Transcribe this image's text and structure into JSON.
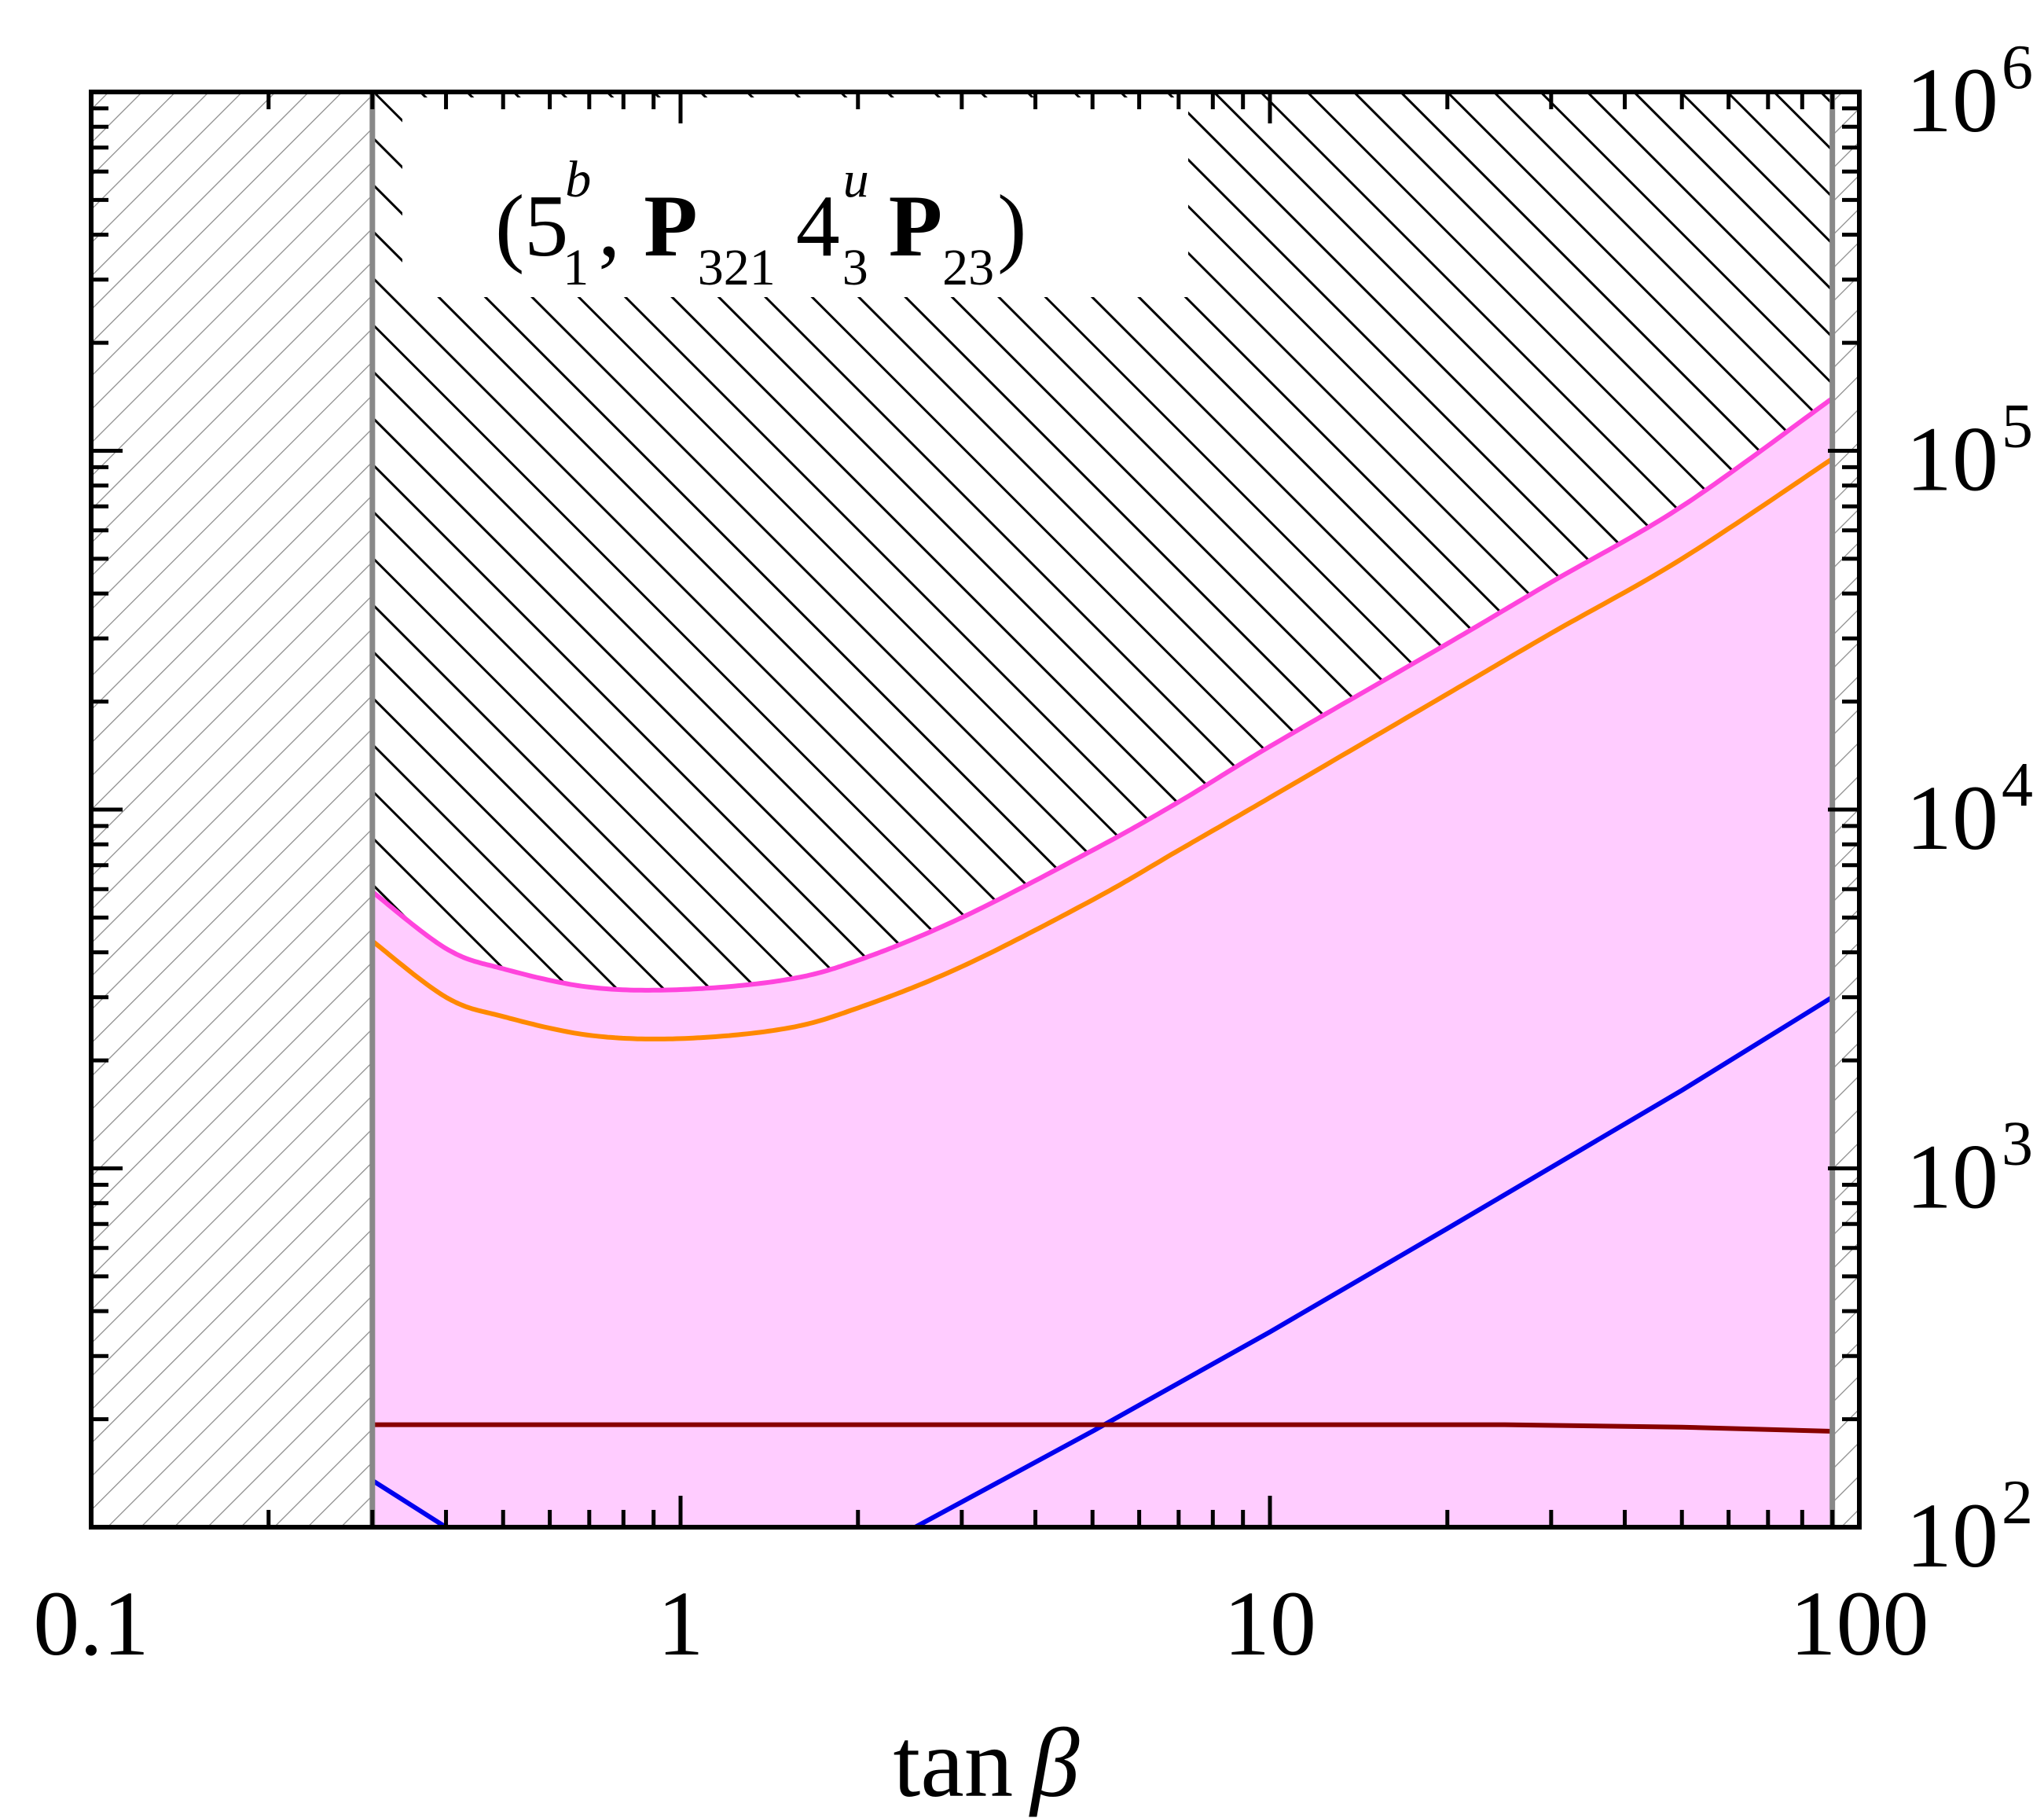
{
  "chart_data": {
    "type": "line",
    "title": {
      "open": "(5",
      "sup1": "b",
      "sub1": "1",
      "sep": ",",
      "p1": "P",
      "sub2": "321",
      "four": "4",
      "sup2": "u",
      "sub3": "3",
      "p2": "P",
      "sub4": "23",
      "close": ")"
    },
    "xlabel": "tan",
    "xlabel_symbol": "β",
    "x_scale": "log",
    "y_scale": "log",
    "xlim": [
      0.1,
      100
    ],
    "ylim": [
      100,
      1000000
    ],
    "x_ticks": [
      {
        "value": 0.1,
        "label": "0.1"
      },
      {
        "value": 1,
        "label": "1"
      },
      {
        "value": 10,
        "label": "10"
      },
      {
        "value": 100,
        "label": "100"
      }
    ],
    "y_ticks": [
      {
        "value": 100,
        "base": "10",
        "exp": "2"
      },
      {
        "value": 1000,
        "base": "10",
        "exp": "3"
      },
      {
        "value": 10000,
        "base": "10",
        "exp": "4"
      },
      {
        "value": 100000,
        "base": "10",
        "exp": "5"
      },
      {
        "value": 1000000,
        "base": "10",
        "exp": "6"
      }
    ],
    "y_axis_side": "right",
    "excluded_regions": [
      {
        "x_range": [
          0.1,
          0.3
        ],
        "style": "light grey hatch"
      },
      {
        "x_range": [
          90,
          100
        ],
        "style": "light grey hatch"
      }
    ],
    "upper_excluded_hatch": {
      "style": "black hatch",
      "above_series": "upper bound"
    },
    "allowed_band": {
      "color": "#ffccff",
      "between": "upper bound and y-axis minimum"
    },
    "colors": {
      "band": "#ffccff",
      "upper": "#ff44dd",
      "orange": "#ff8800",
      "blue": "#0000ee",
      "darkred": "#880000",
      "grey_line": "#888888"
    },
    "series": [
      {
        "name": "upper bound",
        "color": "#ff44dd",
        "x": [
          0.3,
          0.4,
          0.5,
          0.7,
          1.0,
          1.5,
          2.0,
          3.0,
          5.0,
          7.0,
          10,
          20,
          30,
          50,
          90
        ],
        "y": [
          5900,
          4100,
          3600,
          3200,
          3150,
          3350,
          3800,
          5000,
          7700,
          10500,
          15000,
          29000,
          43000,
          70000,
          140000
        ]
      },
      {
        "name": "orange curve",
        "color": "#ff8800",
        "x": [
          0.3,
          0.4,
          0.5,
          0.7,
          1.0,
          1.5,
          2.0,
          3.0,
          5.0,
          7.0,
          10,
          20,
          30,
          50,
          90
        ],
        "y": [
          4300,
          3000,
          2650,
          2350,
          2300,
          2450,
          2800,
          3650,
          5600,
          7700,
          10800,
          21000,
          31000,
          50000,
          95000
        ]
      },
      {
        "name": "blue line",
        "color": "#0000ee",
        "x": [
          0.3,
          0.4,
          2.5,
          5.0,
          10,
          20,
          50,
          90
        ],
        "y": [
          135,
          100,
          100,
          185,
          350,
          680,
          1650,
          3000
        ]
      },
      {
        "name": "dark red line",
        "color": "#880000",
        "x": [
          0.3,
          1,
          10,
          25,
          50,
          90
        ],
        "y": [
          193,
          193,
          193,
          193,
          190,
          185
        ]
      }
    ]
  }
}
